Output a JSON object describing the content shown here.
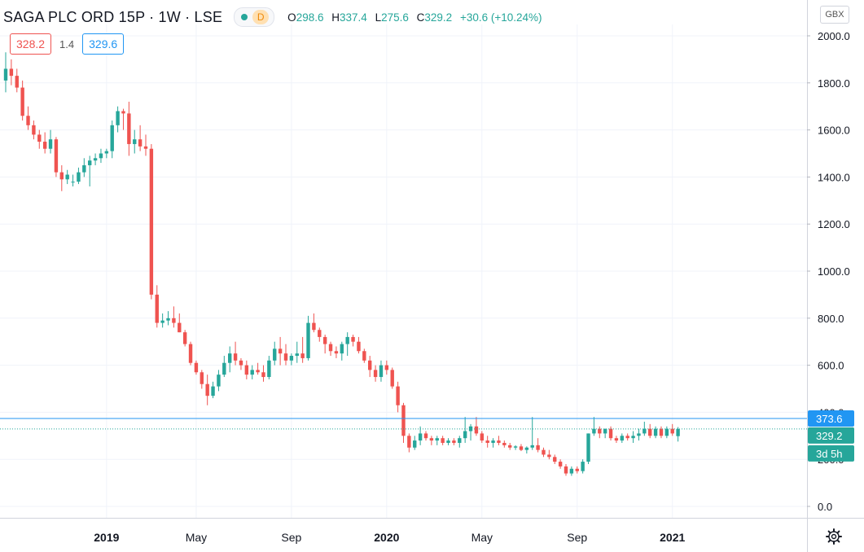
{
  "header": {
    "title": "SAGA PLC ORD 15P · 1W · LSE",
    "interval_badge": "D",
    "open_label": "O",
    "open": "298.6",
    "high_label": "H",
    "high": "337.4",
    "low_label": "L",
    "low": "275.6",
    "close_label": "C",
    "close": "329.2",
    "change": "+30.6 (+10.24%)"
  },
  "quote": {
    "bid": "328.2",
    "spread": "1.4",
    "ask": "329.6"
  },
  "currency": "GBX",
  "price_labels": {
    "high_line": "373.6",
    "last": "329.2",
    "countdown": "3d 5h",
    "partial_tick": "400.0",
    "partial_tick_low": "200.0"
  },
  "colors": {
    "up": "#26a69a",
    "down": "#ef5350",
    "line": "#2196f3"
  },
  "chart_data": {
    "type": "candlestick",
    "title": "SAGA PLC ORD 15P · 1W · LSE",
    "y_ticks": [
      2000,
      1800,
      1600,
      1400,
      1200,
      1000,
      800,
      600,
      0
    ],
    "y_tick_labels": [
      "2000.0",
      "1800.0",
      "1600.0",
      "1400.0",
      "1200.0",
      "1000.0",
      "800.0",
      "600.0",
      "0.0"
    ],
    "ylim": [
      -40,
      2040
    ],
    "x_ticks": [
      {
        "label": "2019",
        "bold": true,
        "index": 18
      },
      {
        "label": "May",
        "bold": false,
        "index": 34
      },
      {
        "label": "Sep",
        "bold": false,
        "index": 51
      },
      {
        "label": "2020",
        "bold": true,
        "index": 68
      },
      {
        "label": "May",
        "bold": false,
        "index": 85
      },
      {
        "label": "Sep",
        "bold": false,
        "index": 102
      },
      {
        "label": "2021",
        "bold": true,
        "index": 119
      }
    ],
    "ohlc": [
      [
        1810,
        1930,
        1760,
        1860
      ],
      [
        1860,
        1900,
        1790,
        1830
      ],
      [
        1830,
        1860,
        1760,
        1780
      ],
      [
        1780,
        1810,
        1640,
        1660
      ],
      [
        1660,
        1700,
        1600,
        1620
      ],
      [
        1620,
        1640,
        1560,
        1580
      ],
      [
        1580,
        1600,
        1520,
        1550
      ],
      [
        1550,
        1590,
        1500,
        1520
      ],
      [
        1520,
        1600,
        1500,
        1560
      ],
      [
        1560,
        1570,
        1400,
        1420
      ],
      [
        1420,
        1450,
        1340,
        1390
      ],
      [
        1390,
        1430,
        1370,
        1410
      ],
      [
        1380,
        1410,
        1360,
        1380
      ],
      [
        1380,
        1440,
        1370,
        1420
      ],
      [
        1420,
        1480,
        1400,
        1450
      ],
      [
        1450,
        1490,
        1360,
        1470
      ],
      [
        1470,
        1500,
        1450,
        1480
      ],
      [
        1480,
        1520,
        1460,
        1500
      ],
      [
        1500,
        1520,
        1480,
        1510
      ],
      [
        1510,
        1640,
        1480,
        1620
      ],
      [
        1620,
        1700,
        1590,
        1680
      ],
      [
        1680,
        1690,
        1600,
        1670
      ],
      [
        1670,
        1720,
        1490,
        1540
      ],
      [
        1540,
        1600,
        1500,
        1560
      ],
      [
        1560,
        1620,
        1510,
        1530
      ],
      [
        1530,
        1580,
        1490,
        1520
      ],
      [
        1520,
        1540,
        880,
        900
      ],
      [
        900,
        940,
        760,
        780
      ],
      [
        780,
        820,
        760,
        790
      ],
      [
        790,
        830,
        770,
        800
      ],
      [
        800,
        850,
        760,
        780
      ],
      [
        780,
        820,
        740,
        740
      ],
      [
        740,
        750,
        680,
        690
      ],
      [
        690,
        700,
        600,
        610
      ],
      [
        610,
        620,
        560,
        570
      ],
      [
        570,
        580,
        500,
        520
      ],
      [
        520,
        560,
        430,
        470
      ],
      [
        470,
        530,
        460,
        510
      ],
      [
        510,
        580,
        490,
        560
      ],
      [
        560,
        640,
        550,
        610
      ],
      [
        610,
        680,
        570,
        650
      ],
      [
        650,
        700,
        600,
        620
      ],
      [
        620,
        630,
        580,
        600
      ],
      [
        600,
        620,
        540,
        560
      ],
      [
        560,
        600,
        540,
        580
      ],
      [
        580,
        610,
        560,
        570
      ],
      [
        570,
        600,
        530,
        550
      ],
      [
        550,
        640,
        540,
        620
      ],
      [
        620,
        700,
        600,
        670
      ],
      [
        670,
        720,
        600,
        650
      ],
      [
        650,
        690,
        600,
        620
      ],
      [
        620,
        650,
        600,
        640
      ],
      [
        640,
        700,
        610,
        650
      ],
      [
        650,
        720,
        610,
        630
      ],
      [
        630,
        810,
        620,
        780
      ],
      [
        780,
        820,
        740,
        750
      ],
      [
        750,
        760,
        700,
        720
      ],
      [
        720,
        730,
        650,
        690
      ],
      [
        690,
        700,
        640,
        660
      ],
      [
        660,
        680,
        630,
        650
      ],
      [
        650,
        700,
        620,
        690
      ],
      [
        690,
        740,
        640,
        720
      ],
      [
        720,
        730,
        680,
        700
      ],
      [
        700,
        720,
        650,
        660
      ],
      [
        660,
        670,
        610,
        620
      ],
      [
        620,
        640,
        550,
        580
      ],
      [
        580,
        600,
        530,
        550
      ],
      [
        550,
        620,
        530,
        600
      ],
      [
        600,
        620,
        560,
        580
      ],
      [
        580,
        590,
        500,
        510
      ],
      [
        510,
        530,
        400,
        430
      ],
      [
        430,
        440,
        270,
        300
      ],
      [
        300,
        310,
        230,
        250
      ],
      [
        250,
        300,
        240,
        280
      ],
      [
        280,
        340,
        260,
        310
      ],
      [
        310,
        320,
        280,
        290
      ],
      [
        290,
        300,
        260,
        280
      ],
      [
        280,
        300,
        260,
        290
      ],
      [
        290,
        300,
        260,
        270
      ],
      [
        270,
        290,
        260,
        280
      ],
      [
        280,
        290,
        260,
        270
      ],
      [
        270,
        300,
        250,
        290
      ],
      [
        290,
        380,
        270,
        320
      ],
      [
        320,
        350,
        280,
        340
      ],
      [
        340,
        380,
        300,
        310
      ],
      [
        310,
        320,
        270,
        280
      ],
      [
        280,
        300,
        250,
        270
      ],
      [
        270,
        290,
        250,
        280
      ],
      [
        280,
        300,
        260,
        270
      ],
      [
        270,
        280,
        250,
        260
      ],
      [
        260,
        270,
        240,
        250
      ],
      [
        250,
        260,
        240,
        255
      ],
      [
        255,
        265,
        235,
        240
      ],
      [
        240,
        255,
        225,
        250
      ],
      [
        250,
        380,
        240,
        260
      ],
      [
        260,
        290,
        230,
        240
      ],
      [
        240,
        250,
        210,
        220
      ],
      [
        220,
        240,
        200,
        210
      ],
      [
        210,
        220,
        180,
        190
      ],
      [
        190,
        200,
        160,
        170
      ],
      [
        170,
        180,
        130,
        140
      ],
      [
        140,
        170,
        130,
        160
      ],
      [
        160,
        170,
        140,
        150
      ],
      [
        150,
        200,
        140,
        190
      ],
      [
        190,
        310,
        180,
        310
      ],
      [
        310,
        380,
        300,
        330
      ],
      [
        330,
        340,
        290,
        310
      ],
      [
        310,
        330,
        290,
        330
      ],
      [
        330,
        340,
        280,
        290
      ],
      [
        290,
        300,
        270,
        280
      ],
      [
        280,
        310,
        270,
        300
      ],
      [
        300,
        310,
        280,
        290
      ],
      [
        290,
        320,
        270,
        300
      ],
      [
        300,
        330,
        280,
        310
      ],
      [
        310,
        360,
        300,
        330
      ],
      [
        330,
        350,
        290,
        300
      ],
      [
        300,
        340,
        290,
        330
      ],
      [
        330,
        340,
        290,
        300
      ],
      [
        300,
        340,
        290,
        330
      ],
      [
        330,
        350,
        300,
        310
      ],
      [
        298.6,
        337.4,
        275.6,
        329.2
      ]
    ]
  }
}
